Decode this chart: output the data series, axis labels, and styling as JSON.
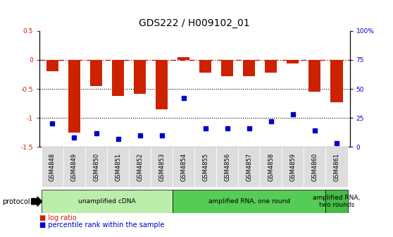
{
  "title": "GDS222 / H009102_01",
  "samples": [
    "GSM4848",
    "GSM4849",
    "GSM4850",
    "GSM4851",
    "GSM4852",
    "GSM4853",
    "GSM4854",
    "GSM4855",
    "GSM4856",
    "GSM4857",
    "GSM4858",
    "GSM4859",
    "GSM4860",
    "GSM4861"
  ],
  "log_ratio": [
    -0.2,
    -1.25,
    -0.45,
    -0.62,
    -0.58,
    -0.85,
    0.05,
    -0.22,
    -0.28,
    -0.28,
    -0.22,
    -0.06,
    -0.55,
    -0.73
  ],
  "percentile_rank": [
    20,
    8,
    12,
    7,
    10,
    10,
    42,
    16,
    16,
    16,
    22,
    28,
    14,
    3
  ],
  "ylim_left": [
    -1.5,
    0.5
  ],
  "ylim_right": [
    0,
    100
  ],
  "bar_color": "#cc2200",
  "dot_color": "#0000cc",
  "hline_color": "#cc0000",
  "dotted_line_color": "#000000",
  "bg_color": "#ffffff",
  "protocol_groups": [
    {
      "label": "unamplified cDNA",
      "start": 0,
      "end": 5,
      "color": "#bbeeaa"
    },
    {
      "label": "amplified RNA, one round",
      "start": 6,
      "end": 12,
      "color": "#55cc55"
    },
    {
      "label": "amplified RNA,\ntwo rounds",
      "start": 13,
      "end": 13,
      "color": "#44bb44"
    }
  ],
  "title_fontsize": 10,
  "tick_fontsize": 6.5,
  "protocol_label": "protocol"
}
